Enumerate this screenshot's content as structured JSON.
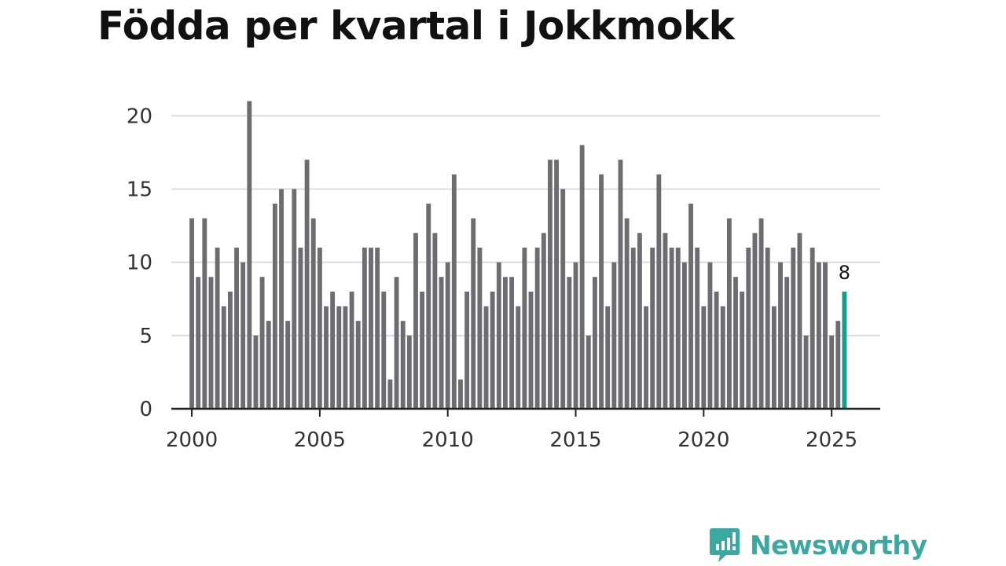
{
  "title": "Födda per kvartal i Jokkmokk",
  "brand": {
    "name": "Newsworthy",
    "icon": "newsworthy-logo-icon",
    "color": "#3aa99f"
  },
  "chart_data": {
    "type": "bar",
    "title": "Födda per kvartal i Jokkmokk",
    "xlabel": "",
    "ylabel": "",
    "ylim": [
      0,
      22
    ],
    "yticks": [
      0,
      5,
      10,
      15,
      20
    ],
    "xticks": [
      2000,
      2005,
      2010,
      2015,
      2020,
      2025
    ],
    "xlim": [
      1999.2,
      2026.9
    ],
    "grid": "horizontal",
    "bar_color": "#6d6c71",
    "highlight_color": "#159d8f",
    "highlight_label": "8",
    "start_year": 2000,
    "categories": [
      "2000 Q1",
      "2000 Q2",
      "2000 Q3",
      "2000 Q4",
      "2001 Q1",
      "2001 Q2",
      "2001 Q3",
      "2001 Q4",
      "2002 Q1",
      "2002 Q2",
      "2002 Q3",
      "2002 Q4",
      "2003 Q1",
      "2003 Q2",
      "2003 Q3",
      "2003 Q4",
      "2004 Q1",
      "2004 Q2",
      "2004 Q3",
      "2004 Q4",
      "2005 Q1",
      "2005 Q2",
      "2005 Q3",
      "2005 Q4",
      "2006 Q1",
      "2006 Q2",
      "2006 Q3",
      "2006 Q4",
      "2007 Q1",
      "2007 Q2",
      "2007 Q3",
      "2007 Q4",
      "2008 Q1",
      "2008 Q2",
      "2008 Q3",
      "2008 Q4",
      "2009 Q1",
      "2009 Q2",
      "2009 Q3",
      "2009 Q4",
      "2010 Q1",
      "2010 Q2",
      "2010 Q3",
      "2010 Q4",
      "2011 Q1",
      "2011 Q2",
      "2011 Q3",
      "2011 Q4",
      "2012 Q1",
      "2012 Q2",
      "2012 Q3",
      "2012 Q4",
      "2013 Q1",
      "2013 Q2",
      "2013 Q3",
      "2013 Q4",
      "2014 Q1",
      "2014 Q2",
      "2014 Q3",
      "2014 Q4",
      "2015 Q1",
      "2015 Q2",
      "2015 Q3",
      "2015 Q4",
      "2016 Q1",
      "2016 Q2",
      "2016 Q3",
      "2016 Q4",
      "2017 Q1",
      "2017 Q2",
      "2017 Q3",
      "2017 Q4",
      "2018 Q1",
      "2018 Q2",
      "2018 Q3",
      "2018 Q4",
      "2019 Q1",
      "2019 Q2",
      "2019 Q3",
      "2019 Q4",
      "2020 Q1",
      "2020 Q2",
      "2020 Q3",
      "2020 Q4",
      "2021 Q1",
      "2021 Q2",
      "2021 Q3",
      "2021 Q4",
      "2022 Q1",
      "2022 Q2",
      "2022 Q3",
      "2022 Q4",
      "2023 Q1",
      "2023 Q2",
      "2023 Q3",
      "2023 Q4",
      "2024 Q1",
      "2024 Q2",
      "2024 Q3",
      "2024 Q4",
      "2025 Q1",
      "2025 Q2",
      "2025 Q3"
    ],
    "values": [
      13,
      9,
      13,
      9,
      11,
      7,
      8,
      11,
      10,
      21,
      5,
      9,
      6,
      14,
      15,
      6,
      15,
      11,
      17,
      13,
      11,
      7,
      8,
      7,
      7,
      8,
      6,
      11,
      11,
      11,
      8,
      2,
      9,
      6,
      5,
      12,
      8,
      14,
      12,
      9,
      10,
      16,
      2,
      8,
      13,
      11,
      7,
      8,
      10,
      9,
      9,
      7,
      11,
      8,
      11,
      12,
      17,
      17,
      15,
      9,
      10,
      18,
      5,
      9,
      16,
      7,
      10,
      17,
      13,
      11,
      12,
      7,
      11,
      16,
      12,
      11,
      11,
      10,
      14,
      11,
      7,
      10,
      8,
      7,
      13,
      9,
      8,
      11,
      12,
      13,
      11,
      7,
      10,
      9,
      11,
      12,
      5,
      11,
      10,
      10,
      5,
      6,
      8
    ]
  }
}
